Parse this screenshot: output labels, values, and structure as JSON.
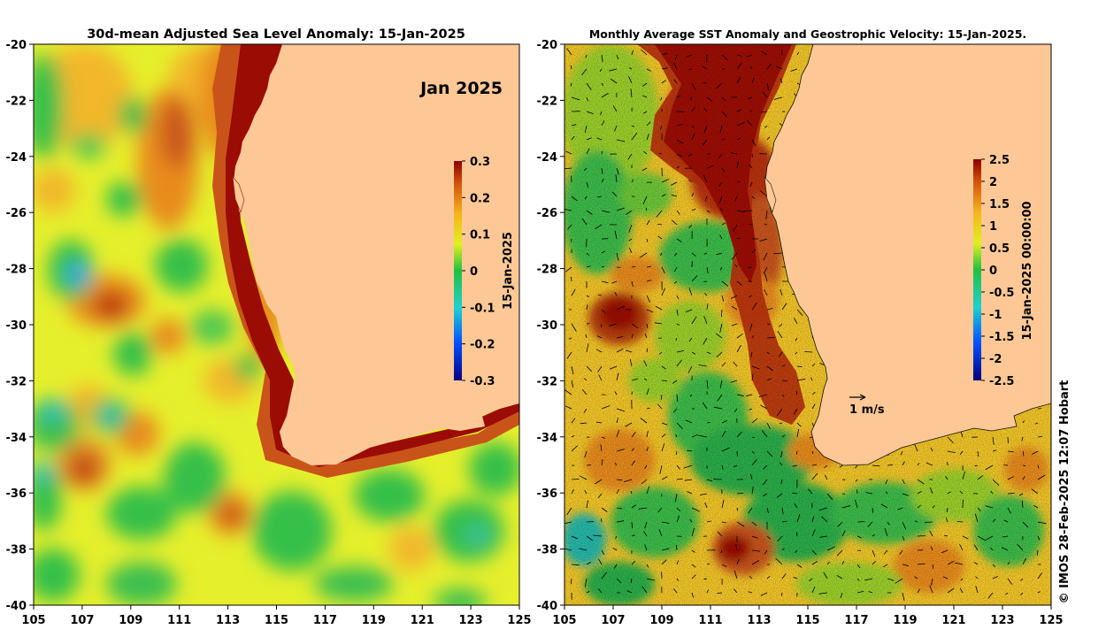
{
  "left_panel": {
    "title": "30d-mean Adjusted Sea Level Anomaly: 15-Jan-2025",
    "month_label": "Jan 2025",
    "colorbar": {
      "label": "15-Jan-2025",
      "ticks": [
        "0.3",
        "0.2",
        "0.1",
        "0",
        "-0.1",
        "-0.2",
        "-0.3"
      ],
      "range": [
        -0.3,
        0.3
      ]
    }
  },
  "right_panel": {
    "title": "Monthly Average SST Anomaly  and Geostrophic Velocity: 15-Jan-2025.",
    "velocity_scale_label": "1 m/s",
    "colorbar": {
      "label": "15-Jan-2025 00:00:00",
      "ticks": [
        "2.5",
        "2",
        "1.5",
        "1",
        "0.5",
        "0",
        "-0.5",
        "-1",
        "-1.5",
        "-2",
        "-2.5"
      ],
      "range": [
        -2.5,
        2.5
      ]
    }
  },
  "axes": {
    "lon_ticks": [
      "105",
      "107",
      "109",
      "111",
      "113",
      "115",
      "117",
      "119",
      "121",
      "123",
      "125"
    ],
    "lat_ticks": [
      "-20",
      "-22",
      "-24",
      "-26",
      "-28",
      "-30",
      "-32",
      "-34",
      "-36",
      "-38",
      "-40"
    ],
    "lon_range": [
      105,
      125
    ],
    "lat_range": [
      -40,
      -20
    ]
  },
  "credit": "© IMOS 28-Feb-2025 12:07 Hobart",
  "colors": {
    "land": "#fdc896",
    "coast_warm": "#c0420a",
    "deep_red": "#9b0c04",
    "green": "#2cbd48",
    "yellow": "#f4ef2a",
    "cyan": "#28b8d8",
    "navy": "#00007f"
  }
}
